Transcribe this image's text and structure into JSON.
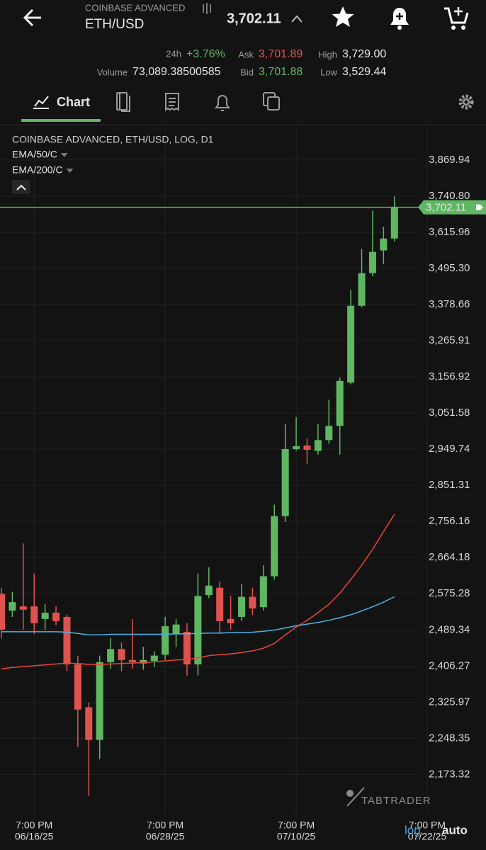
{
  "header": {
    "exchange": "COINBASE ADVANCED",
    "pair": "ETH/USD",
    "price": "3,702.11",
    "change_24h": {
      "label": "24h",
      "value": "+3.76%"
    },
    "ask": {
      "label": "Ask",
      "value": "3,701.89"
    },
    "high": {
      "label": "High",
      "value": "3,729.00"
    },
    "volume": {
      "label": "Volume",
      "value": "73,089.38500585"
    },
    "bid": {
      "label": "Bid",
      "value": "3,701.88"
    },
    "low": {
      "label": "Low",
      "value": "3,529.44"
    }
  },
  "tabs": {
    "active": "Chart"
  },
  "chart_data": {
    "type": "candlestick",
    "title": "COINBASE ADVANCED, ETH/USD, LOG, D1",
    "log_scale": true,
    "grid": true,
    "up_color": "#5fb762",
    "down_color": "#e0524f",
    "x": [
      "06/13/25",
      "06/14/25",
      "06/15/25",
      "06/16/25",
      "06/17/25",
      "06/18/25",
      "06/19/25",
      "06/20/25",
      "06/21/25",
      "06/22/25",
      "06/23/25",
      "06/24/25",
      "06/25/25",
      "06/26/25",
      "06/27/25",
      "06/28/25",
      "06/29/25",
      "06/30/25",
      "07/01/25",
      "07/02/25",
      "07/03/25",
      "07/04/25",
      "07/05/25",
      "07/06/25",
      "07/07/25",
      "07/08/25",
      "07/09/25",
      "07/10/25",
      "07/11/25",
      "07/12/25",
      "07/13/25",
      "07/14/25",
      "07/15/25",
      "07/16/25",
      "07/17/25",
      "07/18/25",
      "07/19/25"
    ],
    "open": [
      2575,
      2535,
      2545,
      2545,
      2515,
      2530,
      2520,
      2410,
      2315,
      2245,
      2415,
      2445,
      2420,
      2412,
      2418,
      2432,
      2480,
      2485,
      2410,
      2572,
      2590,
      2515,
      2520,
      2568,
      2543,
      2618,
      2770,
      2950,
      2960,
      2945,
      2975,
      3015,
      3140,
      3375,
      3480,
      3555,
      3595
    ],
    "high": [
      2590,
      2580,
      2700,
      2625,
      2550,
      2545,
      2525,
      2430,
      2325,
      2430,
      2470,
      2460,
      2515,
      2450,
      2440,
      2520,
      2515,
      2505,
      2625,
      2640,
      2605,
      2570,
      2600,
      2590,
      2645,
      2800,
      3020,
      3040,
      2980,
      3020,
      3090,
      3155,
      3425,
      3560,
      3690,
      3635,
      3740
    ],
    "low": [
      2470,
      2520,
      2490,
      2480,
      2490,
      2500,
      2395,
      2230,
      2130,
      2205,
      2400,
      2395,
      2400,
      2398,
      2405,
      2420,
      2450,
      2385,
      2385,
      2565,
      2480,
      2490,
      2510,
      2525,
      2535,
      2610,
      2755,
      2945,
      2910,
      2935,
      2965,
      2935,
      3135,
      3370,
      3470,
      3510,
      3585
    ],
    "close": [
      2490,
      2555,
      2537,
      2505,
      2530,
      2510,
      2410,
      2310,
      2245,
      2415,
      2445,
      2420,
      2415,
      2420,
      2430,
      2498,
      2502,
      2410,
      2570,
      2595,
      2510,
      2505,
      2568,
      2540,
      2618,
      2770,
      2950,
      2958,
      2948,
      2975,
      3015,
      3145,
      3375,
      3480,
      3550,
      3595,
      3702.11
    ],
    "series": [
      {
        "name": "EMA/50/C",
        "color": "#e8453c",
        "values": [
          2400,
          2403,
          2405,
          2407,
          2409,
          2411,
          2413,
          2412,
          2410,
          2410,
          2411,
          2412,
          2413,
          2414,
          2416,
          2418,
          2420,
          2421,
          2425,
          2430,
          2432,
          2434,
          2437,
          2441,
          2447,
          2458,
          2478,
          2496,
          2512,
          2530,
          2550,
          2577,
          2610,
          2645,
          2685,
          2730,
          2775
        ]
      },
      {
        "name": "EMA/200/C",
        "color": "#4fb3e8",
        "values": [
          2485,
          2485,
          2485,
          2485,
          2485,
          2485,
          2484,
          2481,
          2478,
          2478,
          2479,
          2479,
          2479,
          2479,
          2479,
          2479,
          2480,
          2480,
          2481,
          2482,
          2482,
          2483,
          2483,
          2484,
          2486,
          2489,
          2494,
          2499,
          2503,
          2507,
          2512,
          2518,
          2525,
          2534,
          2544,
          2555,
          2568
        ]
      }
    ],
    "last_price": {
      "value": 3702.11,
      "label": "3,702.11"
    },
    "ylim": [
      2100,
      3990
    ],
    "yticks": [
      {
        "value": 3869.94,
        "label": "3,869.94"
      },
      {
        "value": 3740.8,
        "label": "3,740.80"
      },
      {
        "value": 3615.96,
        "label": "3,615.96"
      },
      {
        "value": 3495.3,
        "label": "3,495.30"
      },
      {
        "value": 3378.66,
        "label": "3,378.66"
      },
      {
        "value": 3265.91,
        "label": "3,265.91"
      },
      {
        "value": 3156.92,
        "label": "3,156.92"
      },
      {
        "value": 3051.58,
        "label": "3,051.58"
      },
      {
        "value": 2949.74,
        "label": "2,949.74"
      },
      {
        "value": 2851.31,
        "label": "2,851.31"
      },
      {
        "value": 2756.16,
        "label": "2,756.16"
      },
      {
        "value": 2664.18,
        "label": "2,664.18"
      },
      {
        "value": 2575.28,
        "label": "2,575.28"
      },
      {
        "value": 2489.34,
        "label": "2,489.34"
      },
      {
        "value": 2406.27,
        "label": "2,406.27"
      },
      {
        "value": 2325.97,
        "label": "2,325.97"
      },
      {
        "value": 2248.35,
        "label": "2,248.35"
      },
      {
        "value": 2173.32,
        "label": "2,173.32"
      }
    ],
    "xlim": [
      "06/13/25",
      "07/22/25"
    ],
    "xticks": [
      {
        "value": "06/16/25",
        "label": [
          "7:00 PM",
          "06/16/25"
        ]
      },
      {
        "value": "06/28/25",
        "label": [
          "7:00 PM",
          "06/28/25"
        ]
      },
      {
        "value": "07/10/25",
        "label": [
          "7:00 PM",
          "07/10/25"
        ]
      },
      {
        "value": "07/22/25",
        "label": [
          "7:00 PM",
          "07/22/25"
        ]
      }
    ],
    "watermark": "TABTRADER",
    "scale_mode": "log",
    "fit_mode": "auto"
  }
}
